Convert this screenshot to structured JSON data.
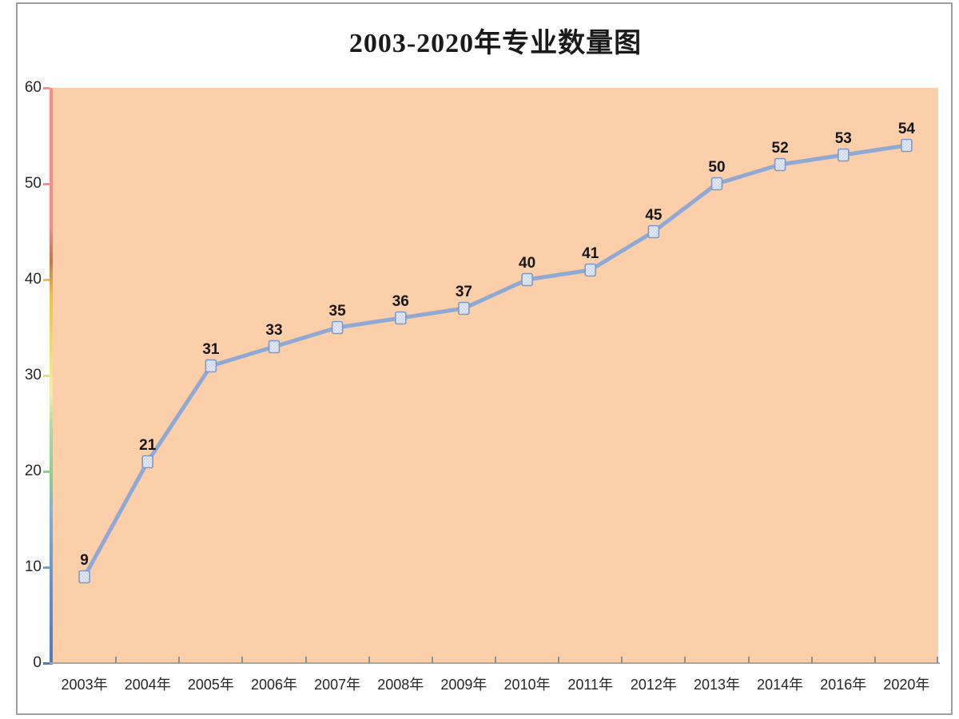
{
  "chart_data": {
    "type": "line",
    "title": "2003-2020年专业数量图",
    "categories": [
      "2003年",
      "2004年",
      "2005年",
      "2006年",
      "2007年",
      "2008年",
      "2009年",
      "2010年",
      "2011年",
      "2012年",
      "2013年",
      "2014年",
      "2016年",
      "2020年"
    ],
    "values": [
      9,
      21,
      31,
      33,
      35,
      36,
      37,
      40,
      41,
      45,
      50,
      52,
      53,
      54
    ],
    "data_labels": [
      9,
      21,
      31,
      33,
      35,
      36,
      37,
      40,
      41,
      45,
      50,
      52,
      53,
      54
    ],
    "xlabel": "",
    "ylabel": "",
    "ylim": [
      0,
      60
    ],
    "yticks": [
      0,
      10,
      20,
      30,
      40,
      50,
      60
    ],
    "grid": false,
    "legend": "none",
    "colors": {
      "plot_bg": "#fbcfa9",
      "line": "#90a9d4",
      "marker_fill": "#cbd8ee",
      "marker_dot": "#eef3fa",
      "marker_border": "#7e99c9",
      "data_label_text": "#161616",
      "axis_label_text": "#262626",
      "x_axis_line": "#a6a6a6",
      "x_tick": "#909090",
      "frame_border": "#9f9f9f",
      "y_axis_gradient": [
        [
          "0%",
          "#f98b8b"
        ],
        [
          "24%",
          "#f98b8b"
        ],
        [
          "30%",
          "#bc7b50"
        ],
        [
          "36%",
          "#ecc14e"
        ],
        [
          "46%",
          "#f1dc76"
        ],
        [
          "53%",
          "#f6edad"
        ],
        [
          "58%",
          "#b4dda4"
        ],
        [
          "67%",
          "#8bce8e"
        ],
        [
          "74%",
          "#7fb0d9"
        ],
        [
          "85%",
          "#6394cc"
        ],
        [
          "100%",
          "#5379b9"
        ]
      ],
      "ytick_colors_ascending": [
        "#5379b9",
        "#6f9fd3",
        "#8bce8e",
        "#f1dc76",
        "#ecc14e",
        "#f98b8b",
        "#f98b8b"
      ]
    }
  }
}
